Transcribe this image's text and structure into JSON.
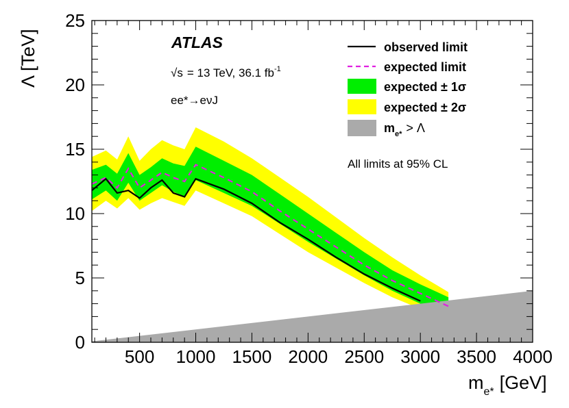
{
  "chart_data": {
    "type": "line",
    "title": "",
    "xlabel": "m",
    "xlabel_sub": "e*",
    "xlabel_unit": "[GeV]",
    "ylabel": "Λ [TeV]",
    "xlim": [
      75,
      4000
    ],
    "ylim": [
      0,
      25
    ],
    "x_ticks": [
      500,
      1000,
      1500,
      2000,
      2500,
      3000,
      3500,
      4000
    ],
    "y_ticks": [
      0,
      5,
      10,
      15,
      20,
      25
    ],
    "grid": false,
    "legend_position": "top-right",
    "x": [
      75,
      200,
      300,
      400,
      500,
      600,
      700,
      800,
      900,
      1000,
      1250,
      1500,
      1750,
      2000,
      2250,
      2500,
      2750,
      3000,
      3250
    ],
    "series": [
      {
        "name": "observed limit",
        "style": "solid",
        "color": "#000000",
        "values": [
          11.8,
          12.7,
          11.6,
          11.8,
          11.2,
          12.0,
          12.6,
          11.6,
          11.3,
          12.7,
          11.9,
          10.8,
          9.3,
          8.0,
          6.6,
          5.3,
          4.2,
          3.2,
          null
        ]
      },
      {
        "name": "expected limit",
        "style": "dashed",
        "color": "#e020e0",
        "values": [
          12.3,
          12.8,
          12.0,
          13.5,
          12.0,
          12.6,
          13.2,
          12.8,
          12.5,
          13.8,
          12.8,
          11.7,
          10.2,
          8.8,
          7.4,
          6.0,
          4.8,
          3.8,
          2.8
        ]
      },
      {
        "name": "expected ± 1σ",
        "kind": "band",
        "color": "#00ee00",
        "lower": [
          11.1,
          11.8,
          11.0,
          12.4,
          11.0,
          11.6,
          12.2,
          11.7,
          11.3,
          12.6,
          11.6,
          10.6,
          9.2,
          7.8,
          6.5,
          5.2,
          4.0,
          3.0,
          2.1
        ],
        "upper": [
          13.4,
          13.8,
          13.1,
          14.7,
          13.0,
          13.6,
          14.3,
          13.9,
          13.7,
          15.2,
          14.1,
          13.0,
          11.5,
          10.0,
          8.5,
          7.0,
          5.6,
          4.5,
          3.5
        ]
      },
      {
        "name": "expected ± 2σ",
        "kind": "band",
        "color": "#ffff00",
        "lower": [
          10.2,
          11.0,
          10.4,
          11.2,
          10.3,
          10.8,
          11.2,
          10.9,
          10.6,
          11.8,
          10.8,
          9.8,
          8.4,
          7.0,
          5.8,
          4.6,
          3.5,
          2.6,
          1.9
        ],
        "upper": [
          14.4,
          14.9,
          14.2,
          16.0,
          14.1,
          15.0,
          15.7,
          15.3,
          15.0,
          16.7,
          15.6,
          14.3,
          12.8,
          11.3,
          9.7,
          8.1,
          6.6,
          5.2,
          3.9
        ]
      },
      {
        "name": "m_e* > Λ",
        "kind": "excluded_region",
        "color": "#aaaaaa",
        "boundary": [
          [
            75,
            0.075
          ],
          [
            4000,
            4.0
          ]
        ]
      }
    ],
    "legend": {
      "observed": "observed limit",
      "expected": "expected limit",
      "one_sigma": "expected ± 1σ",
      "two_sigma": "expected ± 2σ",
      "excluded_base": "m",
      "excluded_sub": "e*",
      "excluded_rest": "> Λ"
    },
    "annotations": {
      "experiment": "ATLAS",
      "sqrt_s": "√s",
      "energy_text": "= 13 TeV, 36.1 fb",
      "energy_sup": "-1",
      "channel": "ee*→eνJ",
      "cl_note": "All limits at 95% CL"
    }
  }
}
